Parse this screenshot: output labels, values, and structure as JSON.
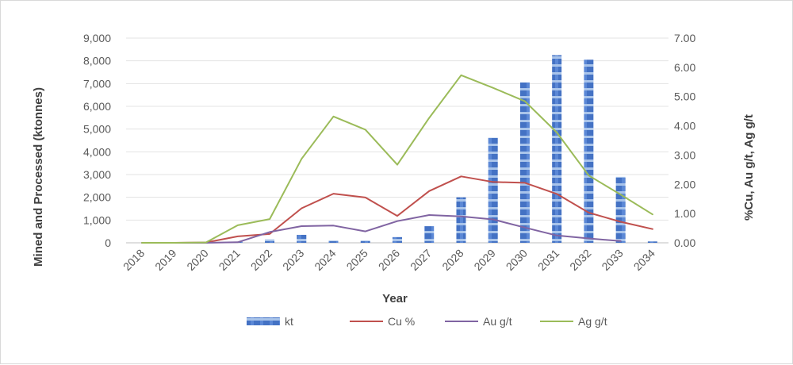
{
  "chart_data": {
    "type": "bar+line",
    "title": "",
    "xlabel": "Year",
    "ylabel": "Mined and Processed (ktonnes)",
    "y2label": "%Cu, Au g/t, Ag g/t",
    "ylim": [
      0,
      9000
    ],
    "y2lim": [
      0,
      7
    ],
    "yticks": [
      "0",
      "1,000",
      "2,000",
      "3,000",
      "4,000",
      "5,000",
      "6,000",
      "7,000",
      "8,000",
      "9,000"
    ],
    "y2ticks": [
      "0.00",
      "1.00",
      "2.00",
      "3.00",
      "4.00",
      "5.00",
      "6.00",
      "7.00"
    ],
    "grid": "horizontal",
    "legend_position": "bottom",
    "categories": [
      "2018",
      "2019",
      "2020",
      "2021",
      "2022",
      "2023",
      "2024",
      "2025",
      "2026",
      "2027",
      "2028",
      "2029",
      "2030",
      "2031",
      "2032",
      "2033",
      "2034"
    ],
    "series": [
      {
        "name": "kt",
        "type": "bar",
        "axis": "left",
        "color": "#4472c4",
        "values": [
          0,
          0,
          0,
          50,
          150,
          350,
          100,
          100,
          250,
          730,
          2000,
          4620,
          7050,
          8250,
          8050,
          2900,
          60
        ]
      },
      {
        "name": "Cu %",
        "type": "line",
        "axis": "right",
        "color": "#c0504d",
        "values": [
          0.0,
          0.0,
          0.01,
          0.22,
          0.3,
          1.18,
          1.68,
          1.55,
          0.92,
          1.77,
          2.27,
          2.08,
          2.05,
          1.67,
          1.03,
          0.72,
          0.47
        ]
      },
      {
        "name": "Au g/t",
        "type": "line",
        "axis": "right",
        "color": "#8064a2",
        "values": [
          0.0,
          0.0,
          0.0,
          0.02,
          0.37,
          0.57,
          0.59,
          0.39,
          0.74,
          0.95,
          0.9,
          0.8,
          0.52,
          0.25,
          0.15,
          0.06,
          null
        ]
      },
      {
        "name": "Ag g/t",
        "type": "line",
        "axis": "right",
        "color": "#9bbb59",
        "values": [
          0.0,
          0.0,
          0.01,
          0.6,
          0.81,
          2.87,
          4.32,
          3.87,
          2.67,
          4.27,
          5.73,
          5.3,
          4.84,
          3.77,
          2.3,
          1.65,
          0.97
        ]
      }
    ]
  }
}
